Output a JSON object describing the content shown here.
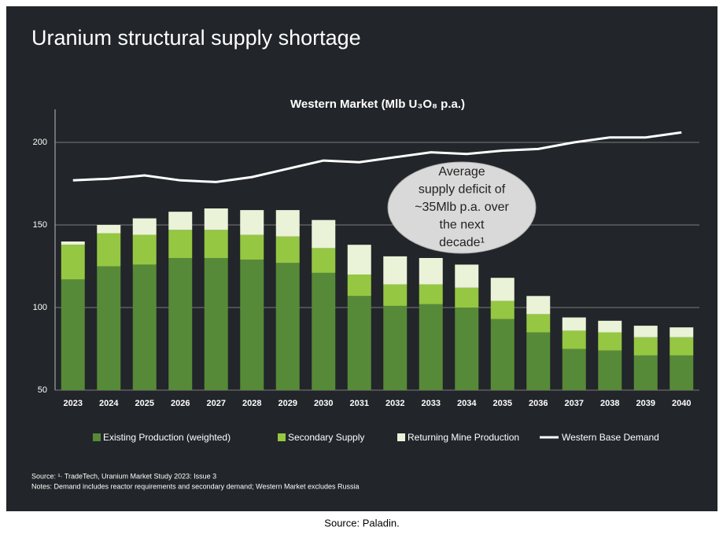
{
  "page_title": "Uranium structural supply shortage",
  "chart_data": {
    "type": "bar",
    "title": "Western Market (Mlb U₃O₈ p.a.)",
    "categories": [
      "2023",
      "2024",
      "2025",
      "2026",
      "2027",
      "2028",
      "2029",
      "2030",
      "2031",
      "2032",
      "2033",
      "2034",
      "2035",
      "2036",
      "2037",
      "2038",
      "2039",
      "2040"
    ],
    "series": [
      {
        "name": "Existing Production (weighted)",
        "type": "bar",
        "color": "#578a38",
        "values": [
          117,
          125,
          126,
          130,
          130,
          129,
          127,
          121,
          107,
          101,
          102,
          100,
          93,
          85,
          75,
          74,
          71,
          71
        ]
      },
      {
        "name": "Secondary Supply",
        "type": "bar",
        "color": "#95c743",
        "values": [
          21,
          20,
          18,
          17,
          17,
          15,
          16,
          15,
          13,
          13,
          12,
          12,
          11,
          11,
          11,
          11,
          11,
          11
        ]
      },
      {
        "name": "Returning Mine Production",
        "type": "bar",
        "color": "#eaf2d8",
        "values": [
          2,
          5,
          10,
          11,
          13,
          15,
          16,
          17,
          18,
          17,
          16,
          14,
          14,
          11,
          8,
          7,
          7,
          6
        ]
      },
      {
        "name": "Western Base Demand",
        "type": "line",
        "color": "#ffffff",
        "values": [
          177,
          178,
          180,
          177,
          176,
          179,
          184,
          189,
          188,
          191,
          194,
          193,
          195,
          196,
          200,
          203,
          203,
          206
        ]
      }
    ],
    "ylim": [
      50,
      220
    ],
    "yticks": [
      50,
      100,
      150,
      200
    ],
    "grid": true,
    "legend": "bottom",
    "annotation": [
      "Average",
      "supply deficit of",
      "~35Mlb p.a. over",
      "the next",
      "decade¹"
    ]
  },
  "footnotes": [
    "Source: ¹· TradeTech, Uranium Market Study 2023: Issue 3",
    "Notes: Demand includes reactor requirements and secondary demand;  Western Market excludes Russia"
  ],
  "caption": "Source: Paladin."
}
